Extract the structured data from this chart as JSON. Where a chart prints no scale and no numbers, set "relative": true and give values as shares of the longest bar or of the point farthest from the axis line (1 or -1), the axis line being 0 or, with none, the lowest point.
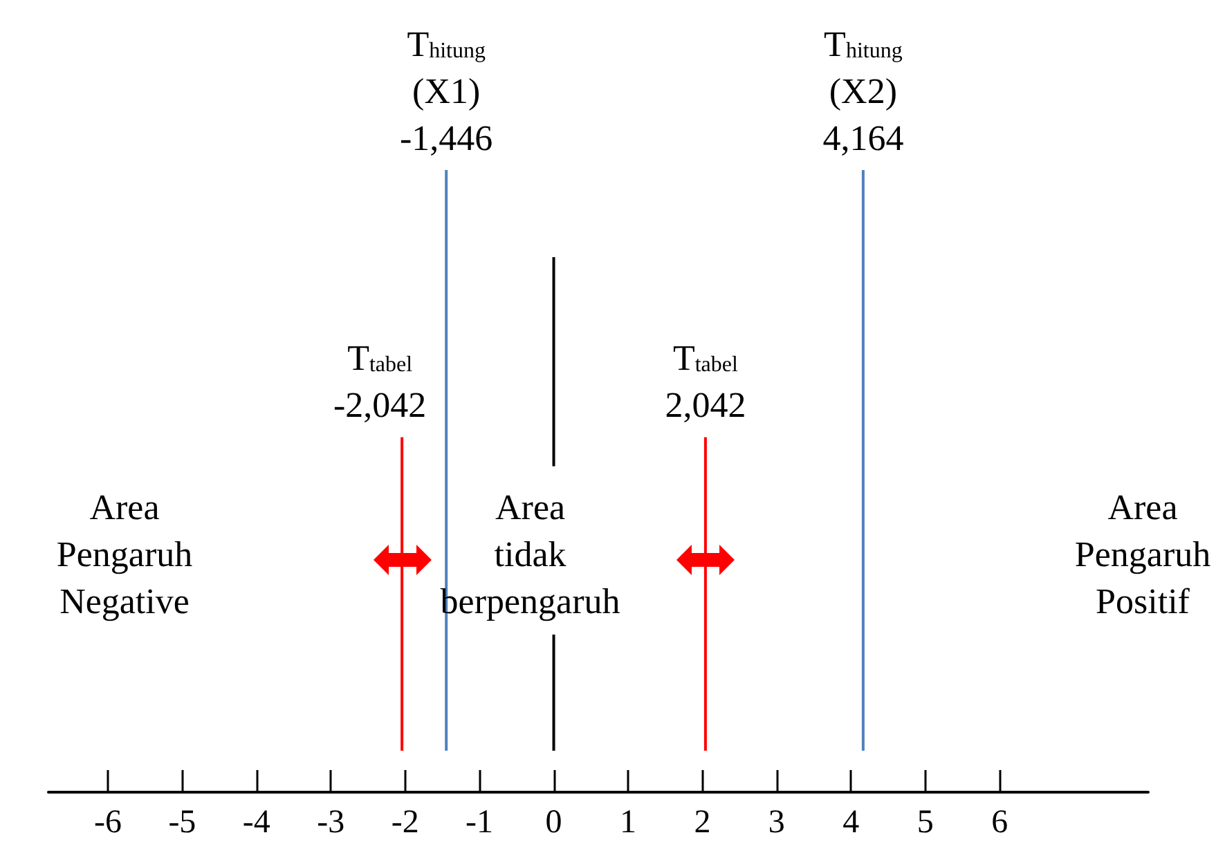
{
  "chart_data": {
    "type": "line",
    "relative": true,
    "xlim": [
      -6.8,
      8
    ],
    "xticks": [
      -6,
      -5,
      -4,
      -3,
      -2,
      -1,
      0,
      1,
      2,
      3,
      4,
      5,
      6
    ],
    "series": [
      {
        "color": "#ff0000",
        "x": [
          -2.042,
          -2.042
        ],
        "values": [
          0,
          0.54
        ]
      },
      {
        "color": "#4f81bd",
        "x": [
          -1.446,
          -1.446
        ],
        "values": [
          0,
          1
        ]
      },
      {
        "color": "#000000",
        "x": [
          0,
          0
        ],
        "values": [
          0,
          0.2
        ]
      },
      {
        "color": "#000000",
        "x": [
          0,
          0
        ],
        "values": [
          0.49,
          0.85
        ]
      },
      {
        "color": "#ff0000",
        "x": [
          2.042,
          2.042
        ],
        "values": [
          0,
          0.54
        ]
      },
      {
        "color": "#4f81bd",
        "x": [
          4.164,
          4.164
        ],
        "values": [
          0,
          1
        ]
      }
    ],
    "annotations": [
      {
        "text": "T$_{tabel}$\n-2,042",
        "x": -2.042,
        "y": 0.54
      },
      {
        "text": "T$_{hitung}$\n(X1)\n-1,446",
        "x": -1.446,
        "y": 1
      },
      {
        "text": "T$_{tabel}$\n2,042",
        "x": 2.042,
        "y": 0.54
      },
      {
        "text": "T$_{hitung}$\n(X2)\n4,164",
        "x": 4.164,
        "y": 1
      },
      "Area\nPengaruh\nNegative",
      "Area\ntidak\nberpengaruh",
      "Area\nPengaruh\nPositif"
    ]
  }
}
